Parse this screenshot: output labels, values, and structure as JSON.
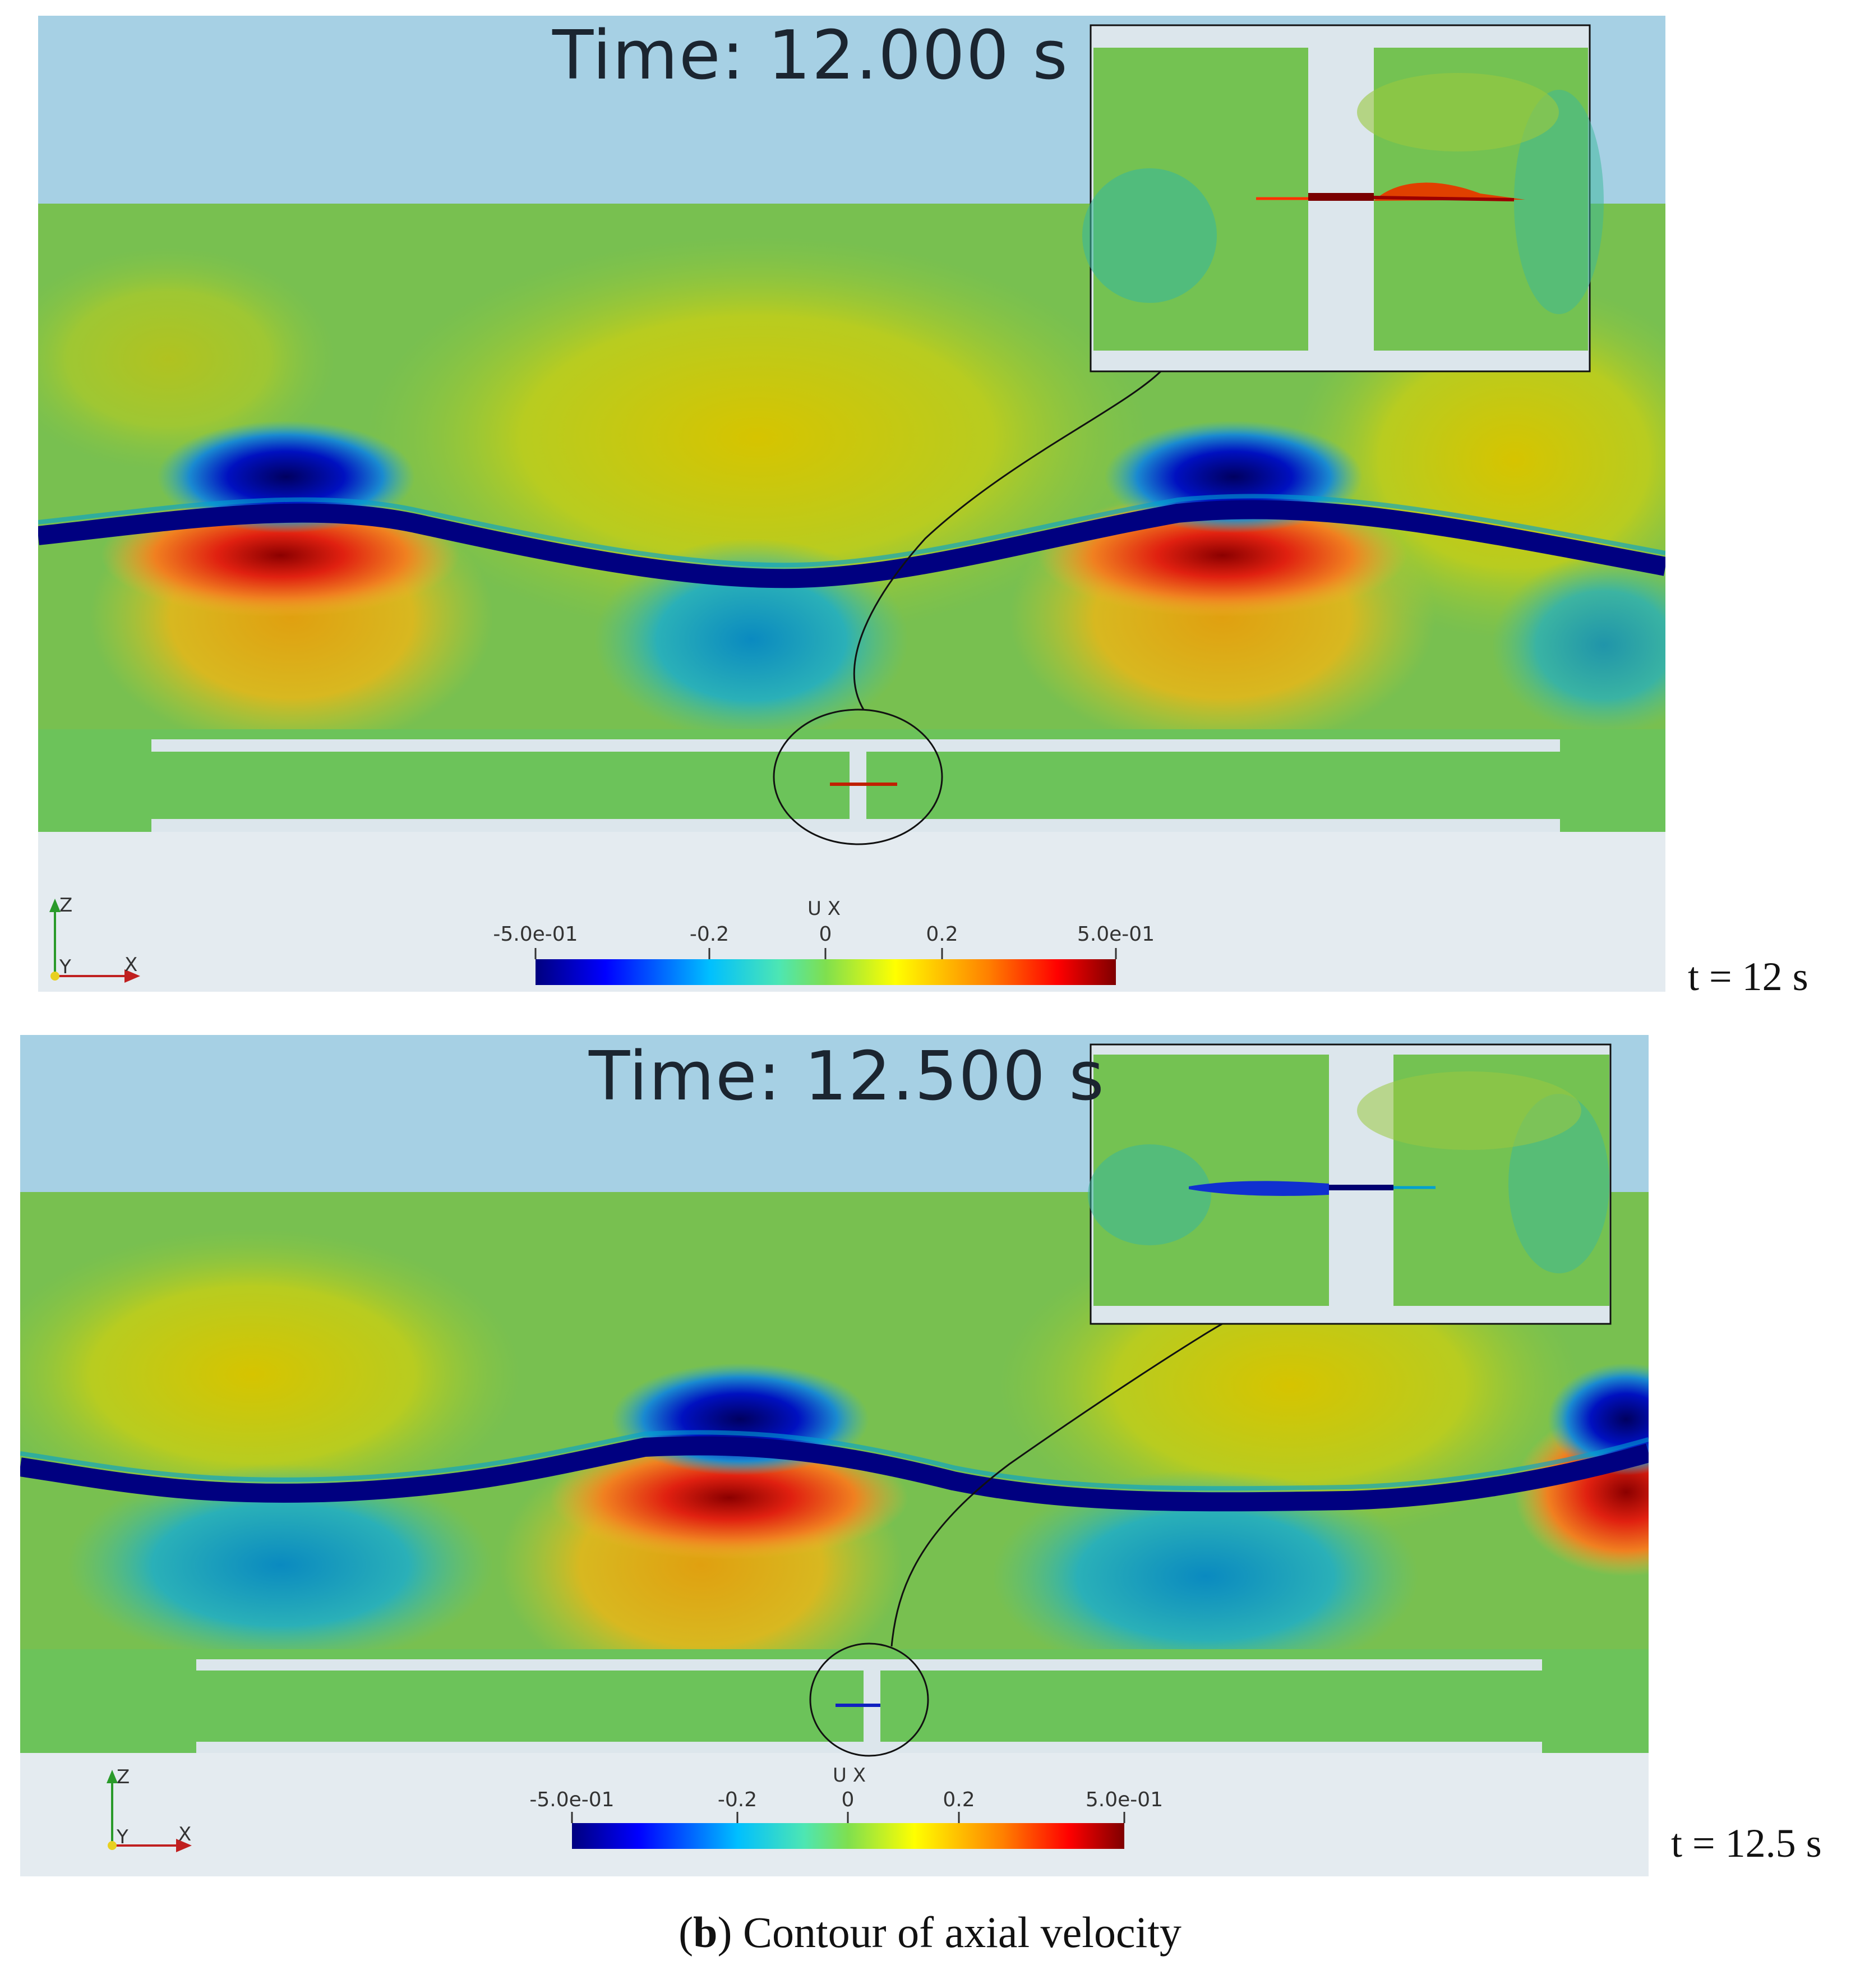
{
  "panels": [
    {
      "time_text": "Time: 12.000 s",
      "side_label": "t = 12 s",
      "colorbar": {
        "title": "U X",
        "ticks": [
          "-5.0e-01",
          "-0.2",
          "0",
          "0.2",
          "5.0e-01"
        ]
      },
      "axes_triad": {
        "z": "Z",
        "y": "Y",
        "x": "X"
      }
    },
    {
      "time_text": "Time: 12.500 s",
      "side_label": "t = 12.5 s",
      "colorbar": {
        "title": "U X",
        "ticks": [
          "-5.0e-01",
          "-0.2",
          "0",
          "0.2",
          "5.0e-01"
        ]
      },
      "axes_triad": {
        "z": "Z",
        "y": "Y",
        "x": "X"
      }
    }
  ],
  "caption": {
    "letter": "b",
    "text": " Contour of axial velocity"
  },
  "colormap": [
    "#00007f",
    "#0000ff",
    "#00bfff",
    "#4de6b3",
    "#7fdf4f",
    "#ffff00",
    "#ff8000",
    "#ff0000",
    "#7f0000"
  ],
  "field_colors": {
    "air": "#a6d0e4",
    "water": "#6cc35a",
    "solid": "#dce6ec"
  }
}
